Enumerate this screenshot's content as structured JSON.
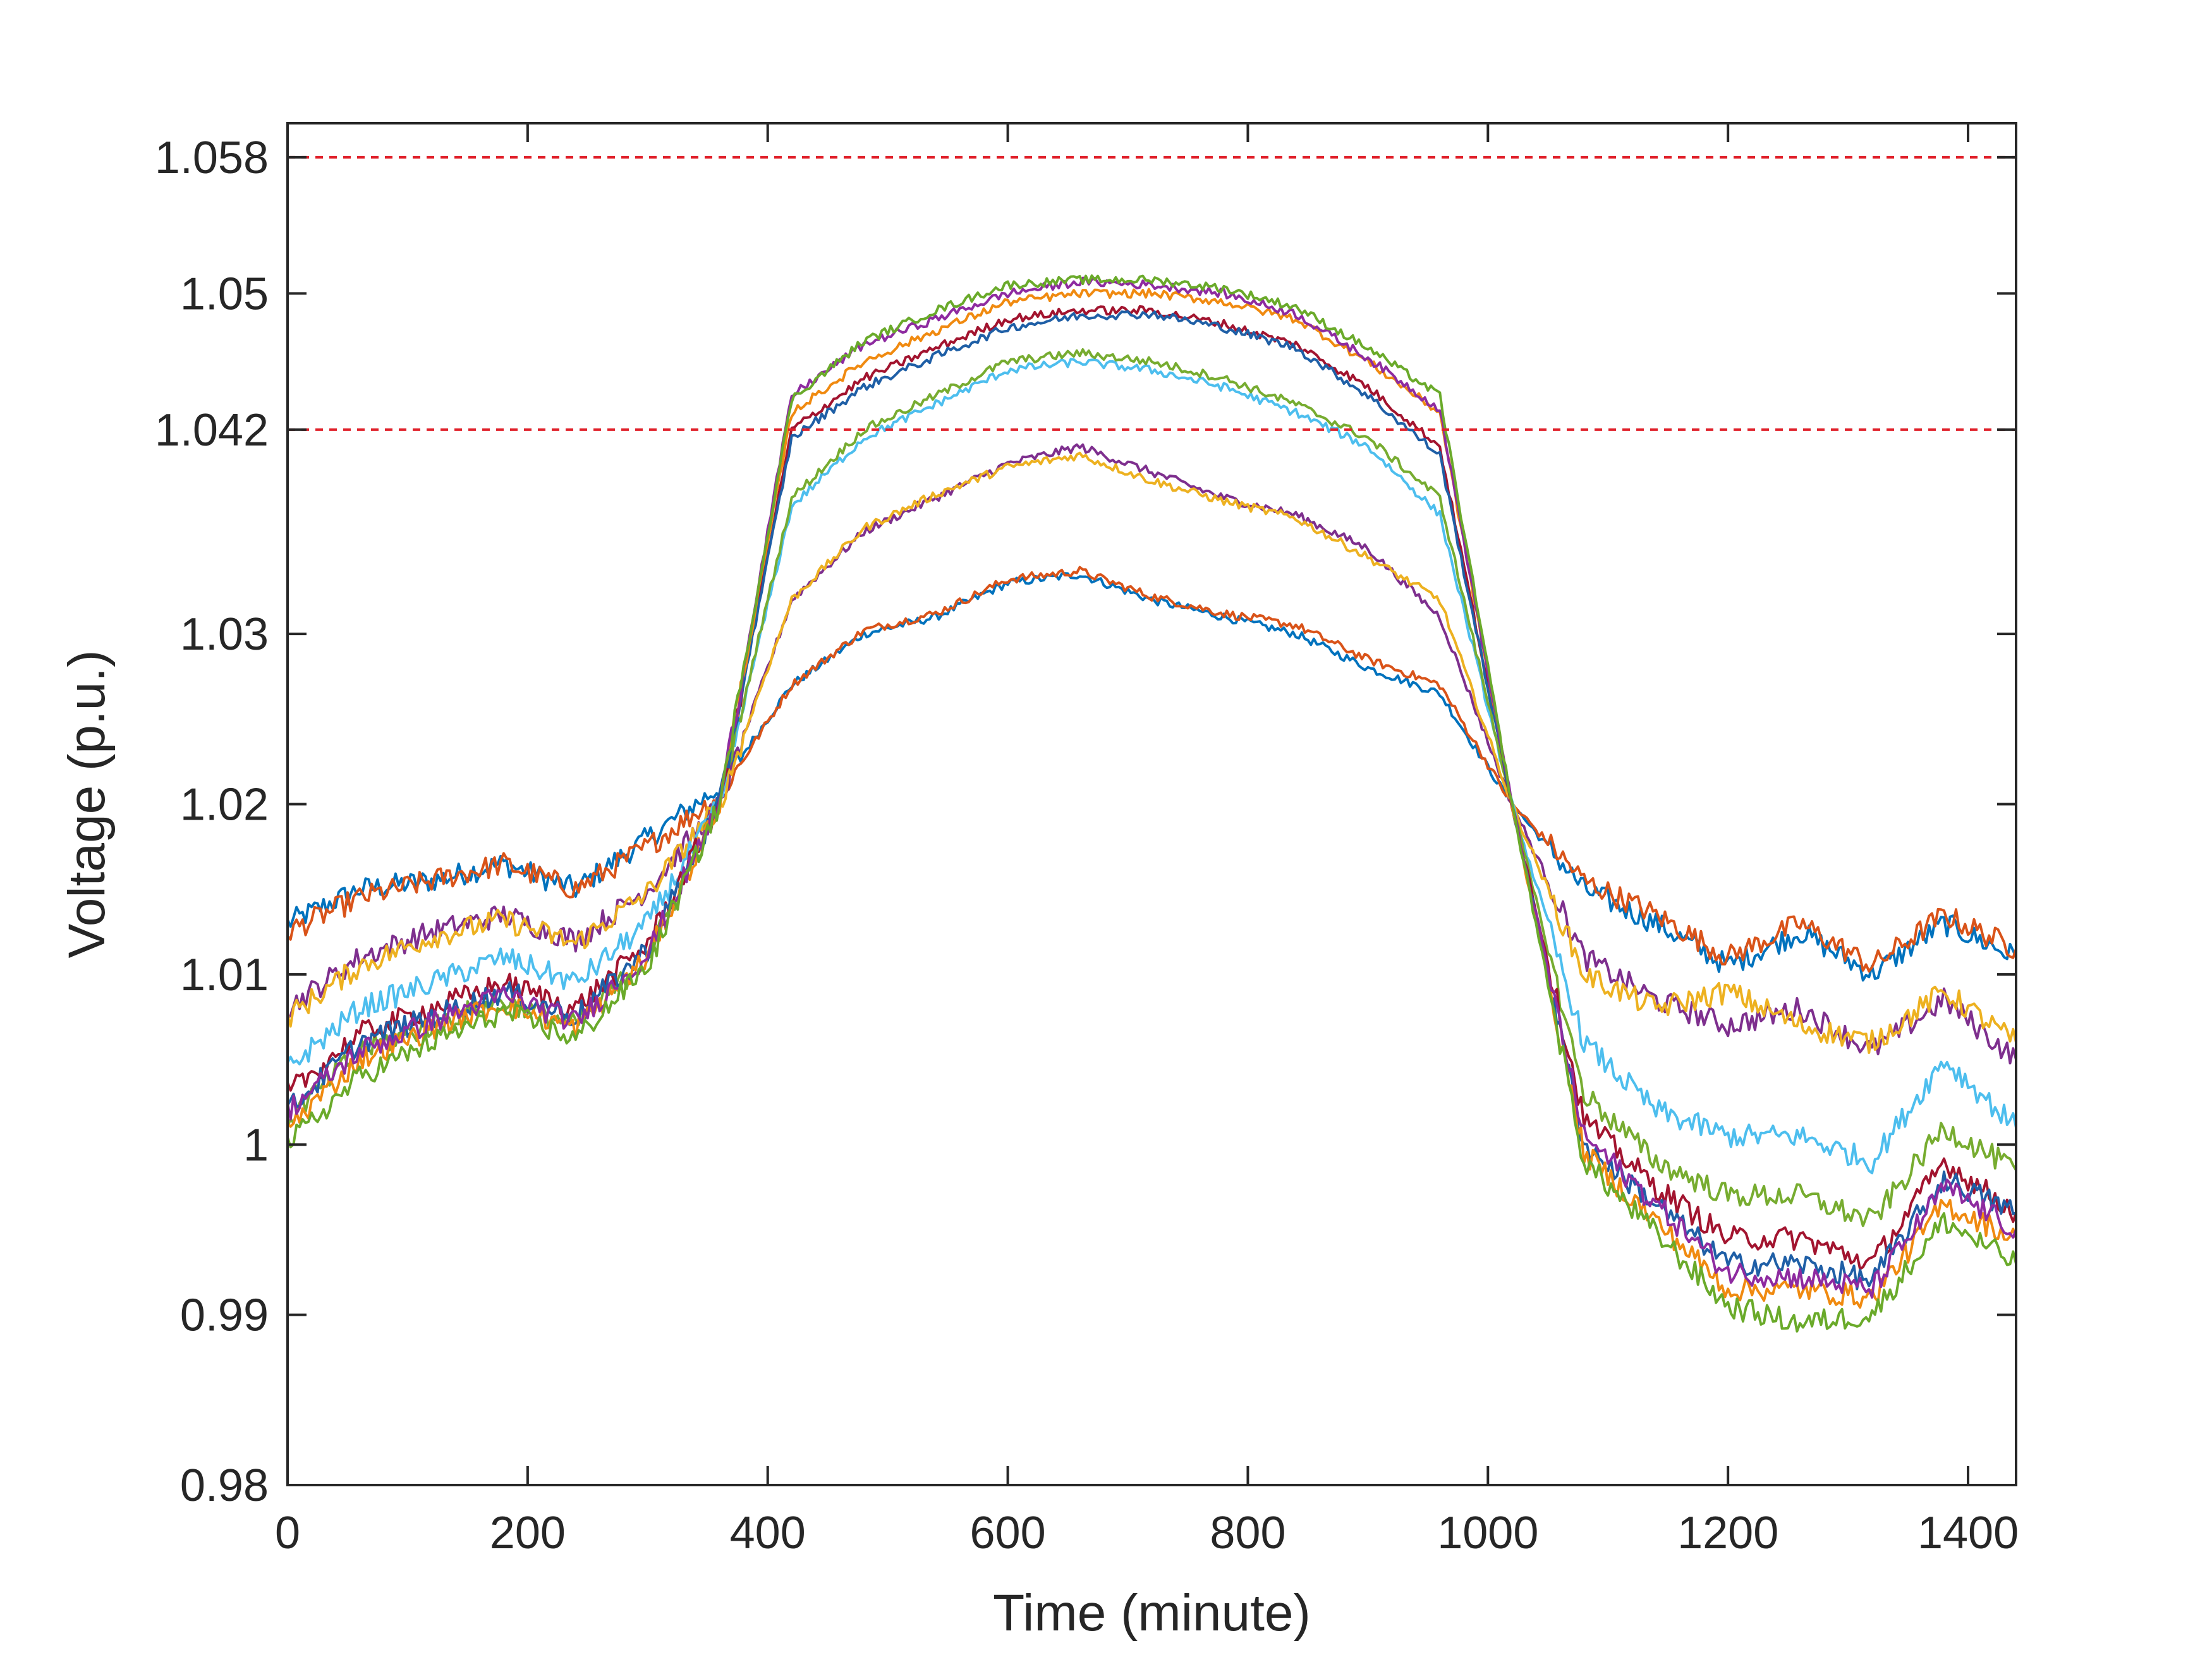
{
  "chart_data": {
    "type": "line",
    "title": "",
    "xlabel": "Time (minute)",
    "ylabel": "Voltage (p.u.)",
    "xlim": [
      0,
      1440
    ],
    "ylim": [
      0.98,
      1.06
    ],
    "xticks": [
      0,
      200,
      400,
      600,
      800,
      1000,
      1200,
      1400
    ],
    "xtick_labels": [
      "0",
      "200",
      "400",
      "600",
      "800",
      "1000",
      "1200",
      "1400"
    ],
    "yticks": [
      0.98,
      0.99,
      1.0,
      1.01,
      1.02,
      1.03,
      1.042,
      1.05,
      1.058
    ],
    "ytick_labels": [
      "0.98",
      "0.99",
      "1",
      "1.01",
      "1.02",
      "1.03",
      "1.042",
      "1.05",
      "1.058"
    ],
    "grid": false,
    "legend": false,
    "reference_lines": [
      {
        "y": 1.058,
        "style": "dashed",
        "color": "#e0202a"
      },
      {
        "y": 1.042,
        "style": "dashed",
        "color": "#e0202a"
      }
    ],
    "x": [
      0,
      60,
      120,
      180,
      240,
      300,
      360,
      420,
      480,
      540,
      600,
      660,
      720,
      780,
      840,
      900,
      960,
      1020,
      1080,
      1140,
      1200,
      1260,
      1320,
      1380,
      1440
    ],
    "series": [
      {
        "color": "#0072bd",
        "values": [
          1.013,
          1.015,
          1.0155,
          1.0165,
          1.015,
          1.018,
          1.021,
          1.027,
          1.03,
          1.031,
          1.033,
          1.0335,
          1.032,
          1.031,
          1.03,
          1.028,
          1.0265,
          1.02,
          1.015,
          1.013,
          1.0105,
          1.0125,
          1.01,
          1.013,
          1.011
        ]
      },
      {
        "color": "#d95319",
        "values": [
          1.0125,
          1.0145,
          1.0155,
          1.0165,
          1.015,
          1.0175,
          1.0205,
          1.027,
          1.0302,
          1.0312,
          1.0332,
          1.0337,
          1.0322,
          1.0312,
          1.0305,
          1.0285,
          1.027,
          1.02,
          1.0155,
          1.0135,
          1.011,
          1.013,
          1.0105,
          1.0135,
          1.0115
        ]
      },
      {
        "color": "#7e2f8e",
        "values": [
          1.008,
          1.011,
          1.0125,
          1.0135,
          1.012,
          1.015,
          1.02,
          1.032,
          1.036,
          1.038,
          1.04,
          1.041,
          1.0395,
          1.038,
          1.037,
          1.035,
          1.031,
          1.02,
          1.011,
          1.0085,
          1.007,
          1.008,
          1.0055,
          1.0085,
          1.005
        ]
      },
      {
        "color": "#edb120",
        "values": [
          1.0075,
          1.0105,
          1.0122,
          1.0132,
          1.0118,
          1.0148,
          1.02,
          1.032,
          1.0362,
          1.0382,
          1.0398,
          1.0405,
          1.039,
          1.0378,
          1.0368,
          1.0345,
          1.032,
          1.02,
          1.01,
          1.008,
          1.009,
          1.007,
          1.006,
          1.009,
          1.006
        ]
      },
      {
        "color": "#4dbeee",
        "values": [
          1.0045,
          1.008,
          1.0095,
          1.011,
          1.0095,
          1.013,
          1.02,
          1.0375,
          1.0415,
          1.0435,
          1.0455,
          1.046,
          1.0455,
          1.0445,
          1.043,
          1.041,
          1.037,
          1.02,
          1.006,
          1.002,
          1.0005,
          1.0005,
          0.999,
          1.005,
          1.001
        ]
      },
      {
        "color": "#77ac30",
        "values": [
          1.0015,
          1.0055,
          1.007,
          1.0085,
          1.007,
          1.011,
          1.02,
          1.038,
          1.042,
          1.044,
          1.046,
          1.0465,
          1.046,
          1.045,
          1.0435,
          1.0415,
          1.038,
          1.02,
          1.003,
          0.999,
          0.997,
          0.997,
          0.9955,
          1.001,
          0.9985
        ]
      },
      {
        "color": "#a2142f",
        "values": [
          1.003,
          1.0065,
          1.008,
          1.0095,
          1.008,
          1.0118,
          1.02,
          1.042,
          1.045,
          1.0468,
          1.0485,
          1.049,
          1.049,
          1.0482,
          1.047,
          1.0445,
          1.041,
          1.02,
          1.0015,
          0.9975,
          0.9945,
          0.9945,
          0.993,
          0.999,
          0.996
        ]
      },
      {
        "color": "#1f5fa6",
        "values": [
          1.002,
          1.006,
          1.0075,
          1.009,
          1.0075,
          1.0115,
          1.02,
          1.0415,
          1.0445,
          1.0463,
          1.048,
          1.0487,
          1.0488,
          1.048,
          1.0468,
          1.044,
          1.0405,
          1.02,
          1.0,
          0.9965,
          0.993,
          0.993,
          0.992,
          0.998,
          0.996
        ]
      },
      {
        "color": "#f08a10",
        "values": [
          1.001,
          1.005,
          1.0068,
          1.0083,
          1.0068,
          1.011,
          1.02,
          1.043,
          1.046,
          1.0478,
          1.0495,
          1.05,
          1.05,
          1.0495,
          1.0485,
          1.046,
          1.043,
          1.02,
          0.9995,
          0.9955,
          0.9915,
          0.9915,
          0.991,
          0.9965,
          0.9945
        ]
      },
      {
        "color": "#8e2ba0",
        "values": [
          1.002,
          1.0055,
          1.0072,
          1.0088,
          1.0072,
          1.0112,
          1.02,
          1.044,
          1.047,
          1.0485,
          1.05,
          1.0507,
          1.0505,
          1.05,
          1.0488,
          1.0462,
          1.0432,
          1.02,
          1.0005,
          0.9965,
          0.9925,
          0.9922,
          0.9915,
          0.9975,
          0.995
        ]
      },
      {
        "color": "#6aaa2a",
        "values": [
          1.0,
          1.004,
          1.006,
          1.0078,
          1.0062,
          1.0105,
          1.02,
          1.0438,
          1.0472,
          1.049,
          1.0505,
          1.0508,
          1.0508,
          1.0503,
          1.0492,
          1.0468,
          1.044,
          1.02,
          0.999,
          0.9948,
          0.9905,
          0.9895,
          0.99,
          0.9955,
          0.993
        ]
      }
    ]
  }
}
